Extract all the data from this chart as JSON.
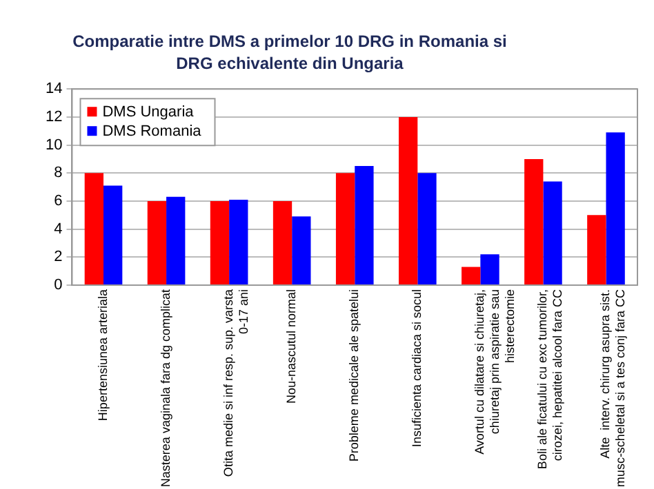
{
  "chart_data": {
    "type": "bar",
    "title": "Comparatie intre DMS a primelor 10 DRG in Romania si DRG echivalente din Ungaria",
    "categories": [
      "Hipertensiunea arteriala",
      "Nasterea vaginala fara dg complicat",
      "Otita medie si inf resp. sup. varsta 0-17 ani",
      "Nou-nascutul normal",
      "Probleme medicale ale spatelui",
      "Insuficienta cardiaca si socul",
      "Avortul cu dilatare si chiuretaj, chiuretaj prin aspiratie sau histerectomie",
      "Boli ale ficatului cu exc tumorilor, cirozei, hepatitei alcool fara CC",
      "Alte  interv. chirurg asupra sist. musc-scheletal si a tes conj fara CC"
    ],
    "series": [
      {
        "name": "DMS Ungaria",
        "color": "#ff0000",
        "values": [
          8,
          6,
          6,
          6,
          8,
          12,
          1.3,
          9,
          5
        ]
      },
      {
        "name": "DMS Romania",
        "color": "#0000ff",
        "values": [
          7.1,
          6.3,
          6.1,
          4.9,
          8.5,
          8,
          2.2,
          7.4,
          10.9
        ]
      }
    ],
    "ylim": [
      0,
      14
    ],
    "yticks": [
      0,
      2,
      4,
      6,
      8,
      10,
      12,
      14
    ],
    "grid": "y",
    "legend": "top left"
  }
}
